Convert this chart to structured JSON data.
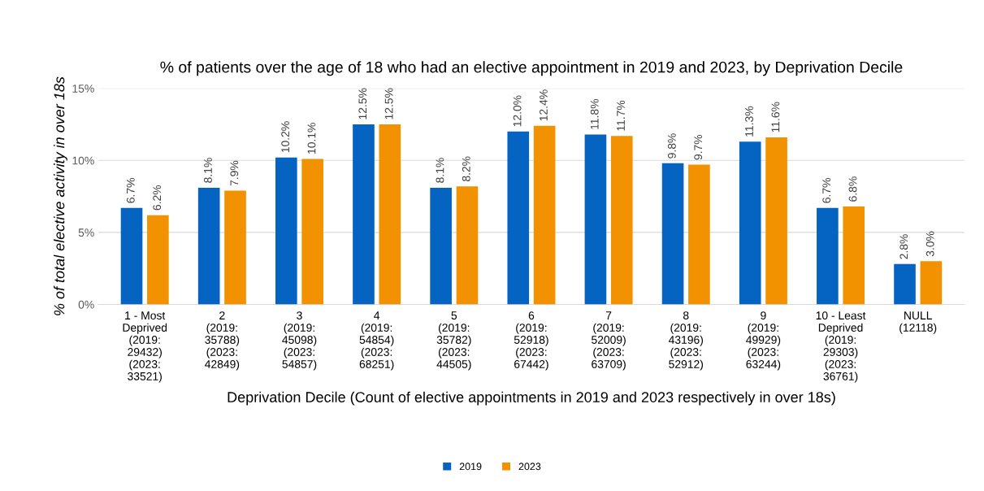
{
  "chart_data": {
    "type": "bar",
    "title": "% of patients over the age of 18 who had an elective appointment in 2019 and 2023, by Deprivation Decile",
    "xlabel": "Deprivation Decile (Count of elective appointments in 2019 and 2023 respectively in over 18s)",
    "ylabel": "% of total elective activity in over 18s",
    "categories": [
      "1 - Most\nDeprived\n(2019:\n29432)\n(2023:\n33521)",
      "2\n(2019:\n35788)\n(2023:\n42849)",
      "3\n(2019:\n45098)\n(2023:\n54857)",
      "4\n(2019:\n54854)\n(2023:\n68251)",
      "5\n(2019:\n35782)\n(2023:\n44505)",
      "6\n(2019:\n52918)\n(2023:\n67442)",
      "7\n(2019:\n52009)\n(2023:\n63709)",
      "8\n(2019:\n43196)\n(2023:\n52912)",
      "9\n(2019:\n49929)\n(2023:\n63244)",
      "10 - Least\nDeprived\n(2019:\n29303)\n(2023:\n36761)",
      "NULL\n(12118)"
    ],
    "series": [
      {
        "name": "2019",
        "color": "#0563c1",
        "values": [
          6.7,
          8.1,
          10.2,
          12.5,
          8.1,
          12.0,
          11.8,
          9.8,
          11.3,
          6.7,
          2.8
        ],
        "value_labels": [
          "6.7%",
          "8.1%",
          "10.2%",
          "12.5%",
          "8.1%",
          "12.0%",
          "11.8%",
          "9.8%",
          "11.3%",
          "6.7%",
          "2.8%"
        ]
      },
      {
        "name": "2023",
        "color": "#f39200",
        "values": [
          6.2,
          7.9,
          10.1,
          12.5,
          8.2,
          12.4,
          11.7,
          9.7,
          11.6,
          6.8,
          3.0
        ],
        "value_labels": [
          "6.2%",
          "7.9%",
          "10.1%",
          "12.5%",
          "8.2%",
          "12.4%",
          "11.7%",
          "9.7%",
          "11.6%",
          "6.8%",
          "3.0%"
        ]
      }
    ],
    "ylim": [
      0,
      15
    ],
    "yticks": [
      {
        "value": 0,
        "label": "0%"
      },
      {
        "value": 5,
        "label": "5%"
      },
      {
        "value": 10,
        "label": "10%"
      },
      {
        "value": 15,
        "label": "15%"
      }
    ],
    "grid": "y",
    "legend": "bottom"
  }
}
